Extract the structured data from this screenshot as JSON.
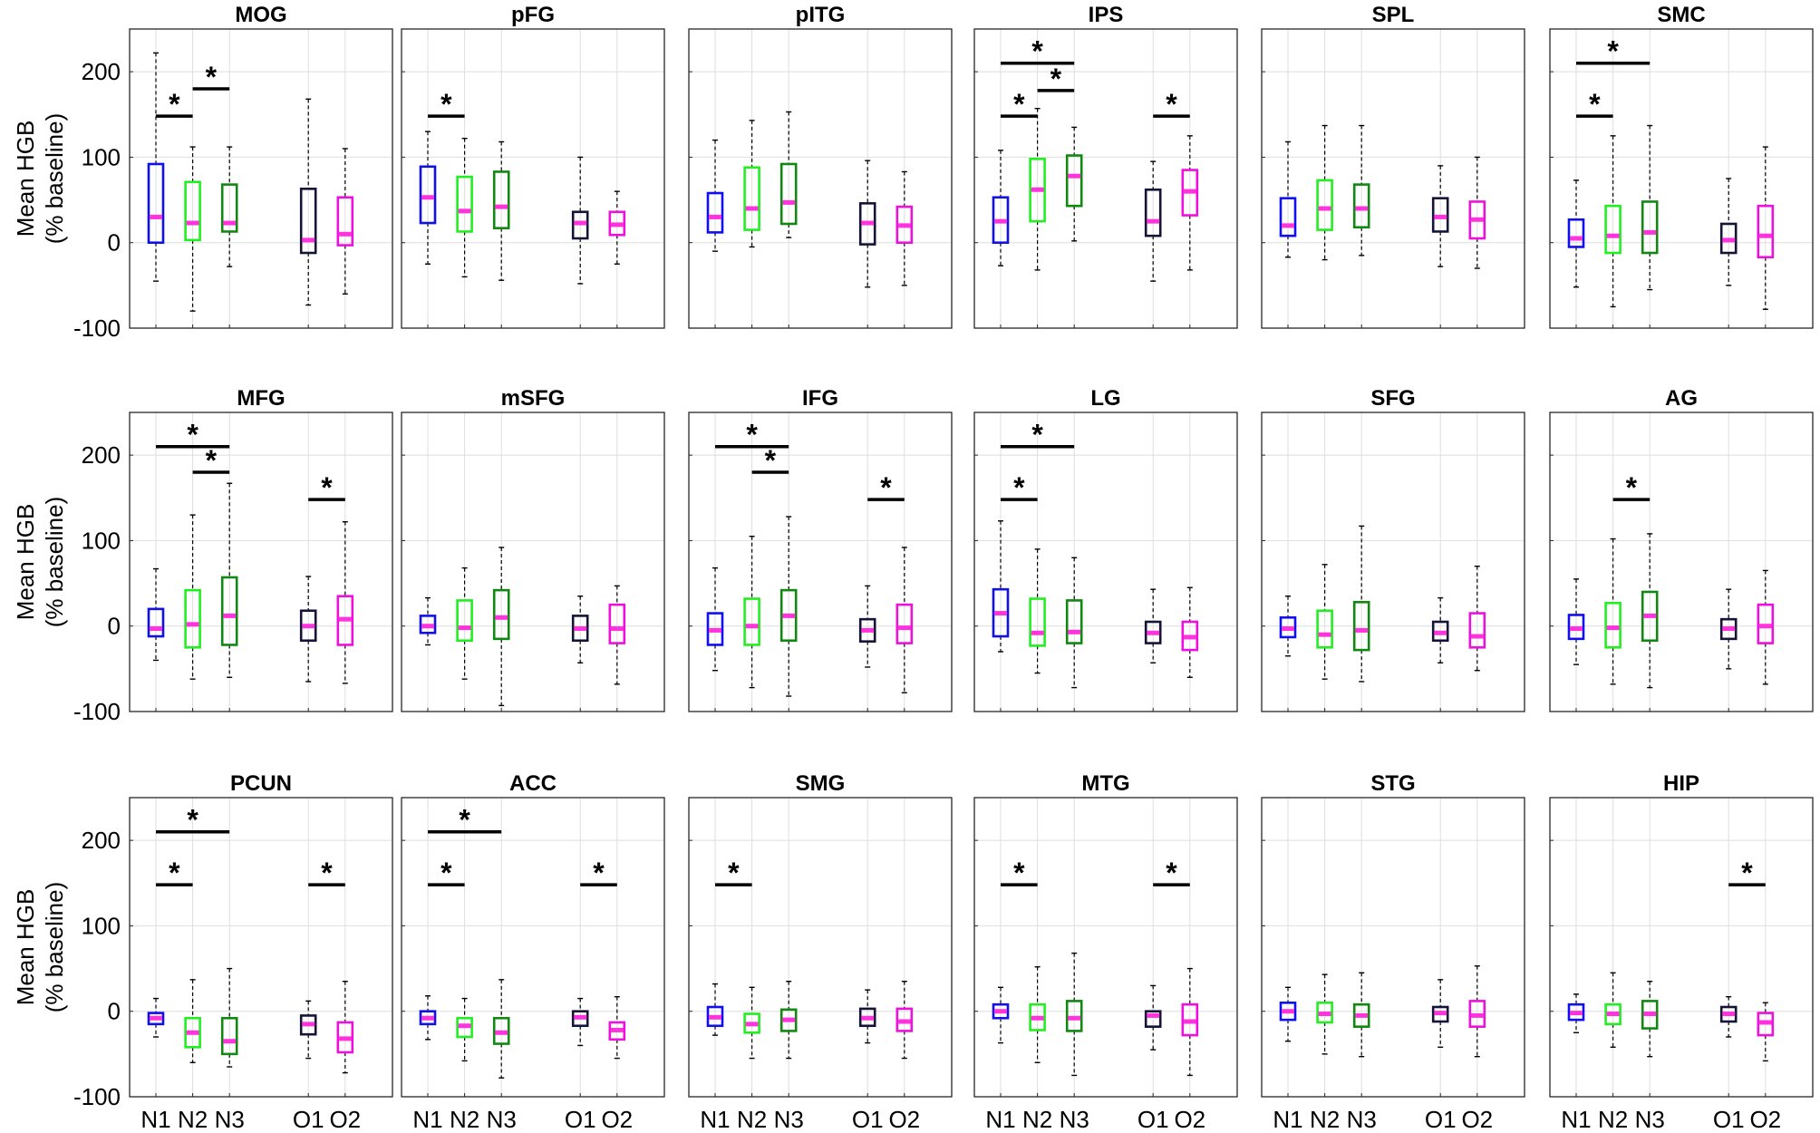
{
  "chart_data": {
    "type": "boxplot",
    "ylabel_line1": "Mean HGB",
    "ylabel_line2": "(% baseline)",
    "ylim": [
      -100,
      250
    ],
    "yticks": [
      -100,
      0,
      100,
      200
    ],
    "conditions": [
      "N1",
      "N2",
      "N3",
      "O1",
      "O2"
    ],
    "colors": {
      "N1": "#1010ee",
      "N2": "#22ee22",
      "N3": "#118811",
      "O1": "#141438",
      "O2": "#ee11dd",
      "median": "#ff33dd"
    },
    "panels": [
      {
        "title": "MOG",
        "boxes": [
          {
            "cond": "N1",
            "min": -45,
            "q1": 0,
            "median": 30,
            "q3": 92,
            "max": 222
          },
          {
            "cond": "N2",
            "min": -80,
            "q1": 3,
            "median": 23,
            "q3": 71,
            "max": 112
          },
          {
            "cond": "N3",
            "min": -28,
            "q1": 13,
            "median": 23,
            "q3": 68,
            "max": 112
          },
          {
            "cond": "O1",
            "min": -73,
            "q1": -12,
            "median": 3,
            "q3": 63,
            "max": 168
          },
          {
            "cond": "O2",
            "min": -60,
            "q1": -3,
            "median": 10,
            "q3": 53,
            "max": 110
          }
        ],
        "sig": [
          {
            "from": "N1",
            "to": "N2",
            "y": 148
          },
          {
            "from": "N2",
            "to": "N3",
            "y": 180
          }
        ]
      },
      {
        "title": "pFG",
        "boxes": [
          {
            "cond": "N1",
            "min": -25,
            "q1": 23,
            "median": 53,
            "q3": 89,
            "max": 130
          },
          {
            "cond": "N2",
            "min": -40,
            "q1": 13,
            "median": 37,
            "q3": 77,
            "max": 122
          },
          {
            "cond": "N3",
            "min": -44,
            "q1": 17,
            "median": 42,
            "q3": 83,
            "max": 118
          },
          {
            "cond": "O1",
            "min": -48,
            "q1": 5,
            "median": 23,
            "q3": 36,
            "max": 100
          },
          {
            "cond": "O2",
            "min": -25,
            "q1": 9,
            "median": 21,
            "q3": 36,
            "max": 60
          }
        ],
        "sig": [
          {
            "from": "N1",
            "to": "N2",
            "y": 148
          }
        ]
      },
      {
        "title": "pITG",
        "boxes": [
          {
            "cond": "N1",
            "min": -10,
            "q1": 12,
            "median": 30,
            "q3": 58,
            "max": 120
          },
          {
            "cond": "N2",
            "min": -5,
            "q1": 15,
            "median": 40,
            "q3": 88,
            "max": 143
          },
          {
            "cond": "N3",
            "min": 6,
            "q1": 22,
            "median": 47,
            "q3": 92,
            "max": 153
          },
          {
            "cond": "O1",
            "min": -52,
            "q1": -2,
            "median": 23,
            "q3": 46,
            "max": 96
          },
          {
            "cond": "O2",
            "min": -50,
            "q1": 0,
            "median": 20,
            "q3": 42,
            "max": 83
          }
        ],
        "sig": []
      },
      {
        "title": "IPS",
        "boxes": [
          {
            "cond": "N1",
            "min": -27,
            "q1": 0,
            "median": 25,
            "q3": 53,
            "max": 108
          },
          {
            "cond": "N2",
            "min": -32,
            "q1": 25,
            "median": 62,
            "q3": 98,
            "max": 157
          },
          {
            "cond": "N3",
            "min": 2,
            "q1": 43,
            "median": 78,
            "q3": 102,
            "max": 135
          },
          {
            "cond": "O1",
            "min": -45,
            "q1": 8,
            "median": 25,
            "q3": 62,
            "max": 95
          },
          {
            "cond": "O2",
            "min": -32,
            "q1": 32,
            "median": 60,
            "q3": 85,
            "max": 125
          }
        ],
        "sig": [
          {
            "from": "N1",
            "to": "N2",
            "y": 148
          },
          {
            "from": "N2",
            "to": "N3",
            "y": 178
          },
          {
            "from": "N1",
            "to": "N3",
            "y": 210
          },
          {
            "from": "O1",
            "to": "O2",
            "y": 148
          }
        ]
      },
      {
        "title": "SPL",
        "boxes": [
          {
            "cond": "N1",
            "min": -17,
            "q1": 8,
            "median": 20,
            "q3": 52,
            "max": 118
          },
          {
            "cond": "N2",
            "min": -20,
            "q1": 15,
            "median": 40,
            "q3": 73,
            "max": 137
          },
          {
            "cond": "N3",
            "min": -15,
            "q1": 18,
            "median": 40,
            "q3": 68,
            "max": 137
          },
          {
            "cond": "O1",
            "min": -28,
            "q1": 13,
            "median": 30,
            "q3": 52,
            "max": 90
          },
          {
            "cond": "O2",
            "min": -30,
            "q1": 5,
            "median": 27,
            "q3": 48,
            "max": 100
          }
        ],
        "sig": []
      },
      {
        "title": "SMC",
        "boxes": [
          {
            "cond": "N1",
            "min": -52,
            "q1": -5,
            "median": 5,
            "q3": 27,
            "max": 73
          },
          {
            "cond": "N2",
            "min": -75,
            "q1": -12,
            "median": 8,
            "q3": 43,
            "max": 125
          },
          {
            "cond": "N3",
            "min": -55,
            "q1": -12,
            "median": 12,
            "q3": 48,
            "max": 137
          },
          {
            "cond": "O1",
            "min": -50,
            "q1": -12,
            "median": 3,
            "q3": 22,
            "max": 75
          },
          {
            "cond": "O2",
            "min": -78,
            "q1": -17,
            "median": 8,
            "q3": 43,
            "max": 112
          }
        ],
        "sig": [
          {
            "from": "N1",
            "to": "N2",
            "y": 148
          },
          {
            "from": "N1",
            "to": "N3",
            "y": 210
          }
        ]
      },
      {
        "title": "MFG",
        "boxes": [
          {
            "cond": "N1",
            "min": -40,
            "q1": -12,
            "median": -3,
            "q3": 20,
            "max": 67
          },
          {
            "cond": "N2",
            "min": -62,
            "q1": -25,
            "median": 2,
            "q3": 42,
            "max": 130
          },
          {
            "cond": "N3",
            "min": -60,
            "q1": -22,
            "median": 12,
            "q3": 57,
            "max": 167
          },
          {
            "cond": "O1",
            "min": -65,
            "q1": -17,
            "median": 0,
            "q3": 18,
            "max": 58
          },
          {
            "cond": "O2",
            "min": -67,
            "q1": -22,
            "median": 8,
            "q3": 35,
            "max": 122
          }
        ],
        "sig": [
          {
            "from": "N1",
            "to": "N3",
            "y": 210
          },
          {
            "from": "N2",
            "to": "N3",
            "y": 180
          },
          {
            "from": "O1",
            "to": "O2",
            "y": 148
          }
        ]
      },
      {
        "title": "mSFG",
        "boxes": [
          {
            "cond": "N1",
            "min": -22,
            "q1": -8,
            "median": 0,
            "q3": 12,
            "max": 33
          },
          {
            "cond": "N2",
            "min": -62,
            "q1": -17,
            "median": -2,
            "q3": 30,
            "max": 68
          },
          {
            "cond": "N3",
            "min": -93,
            "q1": -15,
            "median": 10,
            "q3": 42,
            "max": 92
          },
          {
            "cond": "O1",
            "min": -43,
            "q1": -17,
            "median": -3,
            "q3": 12,
            "max": 35
          },
          {
            "cond": "O2",
            "min": -68,
            "q1": -20,
            "median": -3,
            "q3": 25,
            "max": 47
          }
        ],
        "sig": []
      },
      {
        "title": "IFG",
        "boxes": [
          {
            "cond": "N1",
            "min": -52,
            "q1": -22,
            "median": -5,
            "q3": 15,
            "max": 68
          },
          {
            "cond": "N2",
            "min": -72,
            "q1": -22,
            "median": 0,
            "q3": 32,
            "max": 105
          },
          {
            "cond": "N3",
            "min": -82,
            "q1": -17,
            "median": 12,
            "q3": 42,
            "max": 128
          },
          {
            "cond": "O1",
            "min": -48,
            "q1": -18,
            "median": -5,
            "q3": 8,
            "max": 47
          },
          {
            "cond": "O2",
            "min": -78,
            "q1": -20,
            "median": -2,
            "q3": 25,
            "max": 92
          }
        ],
        "sig": [
          {
            "from": "N1",
            "to": "N3",
            "y": 210
          },
          {
            "from": "N2",
            "to": "N3",
            "y": 180
          },
          {
            "from": "O1",
            "to": "O2",
            "y": 148
          }
        ]
      },
      {
        "title": "LG",
        "boxes": [
          {
            "cond": "N1",
            "min": -30,
            "q1": -12,
            "median": 15,
            "q3": 43,
            "max": 123
          },
          {
            "cond": "N2",
            "min": -55,
            "q1": -23,
            "median": -8,
            "q3": 32,
            "max": 90
          },
          {
            "cond": "N3",
            "min": -72,
            "q1": -20,
            "median": -7,
            "q3": 30,
            "max": 80
          },
          {
            "cond": "O1",
            "min": -43,
            "q1": -20,
            "median": -8,
            "q3": 5,
            "max": 43
          },
          {
            "cond": "O2",
            "min": -60,
            "q1": -28,
            "median": -13,
            "q3": 5,
            "max": 45
          }
        ],
        "sig": [
          {
            "from": "N1",
            "to": "N2",
            "y": 148
          },
          {
            "from": "N1",
            "to": "N3",
            "y": 210
          }
        ]
      },
      {
        "title": "SFG",
        "boxes": [
          {
            "cond": "N1",
            "min": -35,
            "q1": -13,
            "median": -3,
            "q3": 10,
            "max": 35
          },
          {
            "cond": "N2",
            "min": -62,
            "q1": -25,
            "median": -10,
            "q3": 18,
            "max": 72
          },
          {
            "cond": "N3",
            "min": -65,
            "q1": -28,
            "median": -5,
            "q3": 28,
            "max": 117
          },
          {
            "cond": "O1",
            "min": -43,
            "q1": -17,
            "median": -8,
            "q3": 5,
            "max": 33
          },
          {
            "cond": "O2",
            "min": -52,
            "q1": -25,
            "median": -12,
            "q3": 15,
            "max": 70
          }
        ],
        "sig": []
      },
      {
        "title": "AG",
        "boxes": [
          {
            "cond": "N1",
            "min": -45,
            "q1": -15,
            "median": -3,
            "q3": 13,
            "max": 55
          },
          {
            "cond": "N2",
            "min": -68,
            "q1": -25,
            "median": -2,
            "q3": 27,
            "max": 102
          },
          {
            "cond": "N3",
            "min": -72,
            "q1": -17,
            "median": 12,
            "q3": 40,
            "max": 108
          },
          {
            "cond": "O1",
            "min": -50,
            "q1": -15,
            "median": -3,
            "q3": 8,
            "max": 43
          },
          {
            "cond": "O2",
            "min": -68,
            "q1": -20,
            "median": 0,
            "q3": 25,
            "max": 65
          }
        ],
        "sig": [
          {
            "from": "N2",
            "to": "N3",
            "y": 148
          }
        ]
      },
      {
        "title": "PCUN",
        "boxes": [
          {
            "cond": "N1",
            "min": -30,
            "q1": -15,
            "median": -8,
            "q3": -2,
            "max": 15
          },
          {
            "cond": "N2",
            "min": -60,
            "q1": -42,
            "median": -25,
            "q3": -8,
            "max": 37
          },
          {
            "cond": "N3",
            "min": -65,
            "q1": -50,
            "median": -35,
            "q3": -8,
            "max": 50
          },
          {
            "cond": "O1",
            "min": -55,
            "q1": -27,
            "median": -15,
            "q3": -5,
            "max": 12
          },
          {
            "cond": "O2",
            "min": -72,
            "q1": -48,
            "median": -32,
            "q3": -13,
            "max": 35
          }
        ],
        "sig": [
          {
            "from": "N1",
            "to": "N2",
            "y": 148
          },
          {
            "from": "N1",
            "to": "N3",
            "y": 210
          },
          {
            "from": "O1",
            "to": "O2",
            "y": 148
          }
        ]
      },
      {
        "title": "ACC",
        "boxes": [
          {
            "cond": "N1",
            "min": -33,
            "q1": -15,
            "median": -8,
            "q3": 0,
            "max": 18
          },
          {
            "cond": "N2",
            "min": -58,
            "q1": -30,
            "median": -17,
            "q3": -8,
            "max": 15
          },
          {
            "cond": "N3",
            "min": -78,
            "q1": -38,
            "median": -25,
            "q3": -8,
            "max": 37
          },
          {
            "cond": "O1",
            "min": -40,
            "q1": -17,
            "median": -7,
            "q3": 0,
            "max": 15
          },
          {
            "cond": "O2",
            "min": -55,
            "q1": -33,
            "median": -22,
            "q3": -13,
            "max": 17
          }
        ],
        "sig": [
          {
            "from": "N1",
            "to": "N2",
            "y": 148
          },
          {
            "from": "N1",
            "to": "N3",
            "y": 210
          },
          {
            "from": "O1",
            "to": "O2",
            "y": 148
          }
        ]
      },
      {
        "title": "SMG",
        "boxes": [
          {
            "cond": "N1",
            "min": -28,
            "q1": -17,
            "median": -7,
            "q3": 5,
            "max": 32
          },
          {
            "cond": "N2",
            "min": -55,
            "q1": -25,
            "median": -15,
            "q3": -3,
            "max": 28
          },
          {
            "cond": "N3",
            "min": -55,
            "q1": -23,
            "median": -10,
            "q3": 2,
            "max": 35
          },
          {
            "cond": "O1",
            "min": -37,
            "q1": -17,
            "median": -8,
            "q3": 3,
            "max": 25
          },
          {
            "cond": "O2",
            "min": -55,
            "q1": -23,
            "median": -12,
            "q3": 3,
            "max": 35
          }
        ],
        "sig": [
          {
            "from": "N1",
            "to": "N2",
            "y": 148
          }
        ]
      },
      {
        "title": "MTG",
        "boxes": [
          {
            "cond": "N1",
            "min": -37,
            "q1": -8,
            "median": 0,
            "q3": 8,
            "max": 28
          },
          {
            "cond": "N2",
            "min": -60,
            "q1": -22,
            "median": -8,
            "q3": 8,
            "max": 52
          },
          {
            "cond": "N3",
            "min": -75,
            "q1": -23,
            "median": -8,
            "q3": 12,
            "max": 68
          },
          {
            "cond": "O1",
            "min": -45,
            "q1": -18,
            "median": -5,
            "q3": 0,
            "max": 30
          },
          {
            "cond": "O2",
            "min": -75,
            "q1": -28,
            "median": -12,
            "q3": 8,
            "max": 50
          }
        ],
        "sig": [
          {
            "from": "N1",
            "to": "N2",
            "y": 148
          },
          {
            "from": "O1",
            "to": "O2",
            "y": 148
          }
        ]
      },
      {
        "title": "STG",
        "boxes": [
          {
            "cond": "N1",
            "min": -35,
            "q1": -10,
            "median": 0,
            "q3": 10,
            "max": 28
          },
          {
            "cond": "N2",
            "min": -50,
            "q1": -13,
            "median": -3,
            "q3": 10,
            "max": 43
          },
          {
            "cond": "N3",
            "min": -53,
            "q1": -18,
            "median": -5,
            "q3": 8,
            "max": 45
          },
          {
            "cond": "O1",
            "min": -42,
            "q1": -12,
            "median": -2,
            "q3": 5,
            "max": 37
          },
          {
            "cond": "O2",
            "min": -53,
            "q1": -18,
            "median": -5,
            "q3": 12,
            "max": 53
          }
        ],
        "sig": []
      },
      {
        "title": "HIP",
        "boxes": [
          {
            "cond": "N1",
            "min": -25,
            "q1": -10,
            "median": -2,
            "q3": 8,
            "max": 20
          },
          {
            "cond": "N2",
            "min": -42,
            "q1": -15,
            "median": -3,
            "q3": 8,
            "max": 45
          },
          {
            "cond": "N3",
            "min": -53,
            "q1": -20,
            "median": -3,
            "q3": 12,
            "max": 35
          },
          {
            "cond": "O1",
            "min": -30,
            "q1": -12,
            "median": -3,
            "q3": 5,
            "max": 17
          },
          {
            "cond": "O2",
            "min": -58,
            "q1": -28,
            "median": -13,
            "q3": -2,
            "max": 10
          }
        ],
        "sig": [
          {
            "from": "O1",
            "to": "O2",
            "y": 148
          }
        ]
      }
    ]
  }
}
